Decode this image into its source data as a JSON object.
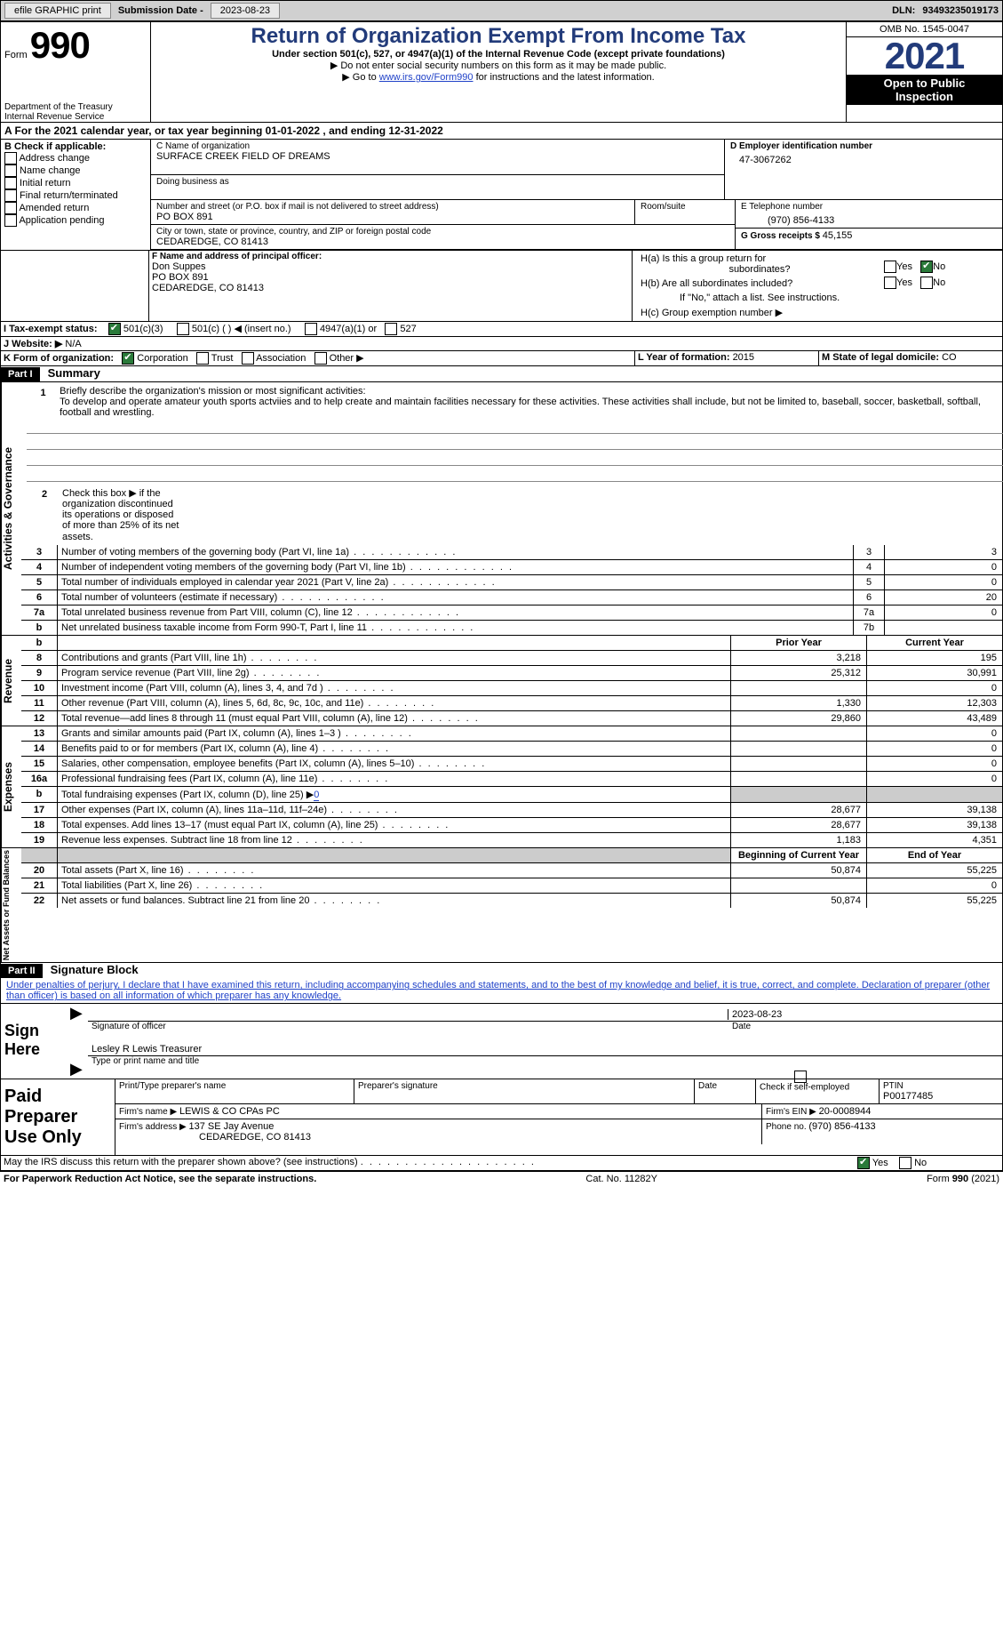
{
  "topbar": {
    "efile": "efile GRAPHIC print",
    "sub_label": "Submission Date - ",
    "sub_date": "2023-08-23",
    "dln_label": "DLN: ",
    "dln": "93493235019173"
  },
  "header": {
    "form_word": "Form",
    "form_num": "990",
    "title": "Return of Organization Exempt From Income Tax",
    "subtitle": "Under section 501(c), 527, or 4947(a)(1) of the Internal Revenue Code (except private foundations)",
    "hint1": "▶ Do not enter social security numbers on this form as it may be made public.",
    "hint2_pre": "▶ Go to ",
    "hint2_link": "www.irs.gov/Form990",
    "hint2_post": " for instructions and the latest information.",
    "dept": "Department of the Treasury",
    "irs": "Internal Revenue Service",
    "omb": "OMB No. 1545-0047",
    "year": "2021",
    "inspect1": "Open to Public",
    "inspect2": "Inspection"
  },
  "A": {
    "text_pre": "A   For the 2021 calendar year, or tax year beginning ",
    "begin": "01-01-2022",
    "mid": "   , and ending ",
    "end": "12-31-2022"
  },
  "B": {
    "label": "B Check if applicable:",
    "opts": [
      "Address change",
      "Name change",
      "Initial return",
      "Final return/terminated",
      "Amended return",
      "Application pending"
    ]
  },
  "C": {
    "name_label": "C Name of organization",
    "name": "SURFACE CREEK FIELD OF DREAMS",
    "dba_label": "Doing business as",
    "addr_label": "Number and street (or P.O. box if mail is not delivered to street address)",
    "room_label": "Room/suite",
    "addr": "PO BOX 891",
    "city_label": "City or town, state or province, country, and ZIP or foreign postal code",
    "city": "CEDAREDGE, CO  81413"
  },
  "D": {
    "label": "D Employer identification number",
    "val": "47-3067262"
  },
  "E": {
    "label": "E Telephone number",
    "val": "(970) 856-4133"
  },
  "G": {
    "label": "G Gross receipts $ ",
    "val": "45,155"
  },
  "F": {
    "label": "F  Name and address of principal officer:",
    "name": "Don Suppes",
    "addr1": "PO BOX 891",
    "addr2": "CEDAREDGE, CO  81413"
  },
  "H": {
    "a_label": "H(a)   Is this a group return for",
    "a_sub": "subordinates?",
    "b_label": "H(b)   Are all subordinates included?",
    "b_hint": "If \"No,\" attach a list. See instructions.",
    "c_label": "H(c)   Group exemption number ▶",
    "yes": "Yes",
    "no": "No"
  },
  "I": {
    "label": "I   Tax-exempt status:",
    "o1": "501(c)(3)",
    "o2": "501(c) ( )  ◀ (insert no.)",
    "o3": "4947(a)(1) or",
    "o4": "527"
  },
  "J": {
    "label": "J   Website: ▶",
    "val": "  N/A"
  },
  "K": {
    "label": "K Form of organization:",
    "o1": "Corporation",
    "o2": "Trust",
    "o3": "Association",
    "o4": "Other ▶"
  },
  "L": {
    "label": "L Year of formation: ",
    "val": "2015"
  },
  "M": {
    "label": "M State of legal domicile: ",
    "val": "CO"
  },
  "part1": {
    "head": "Part I",
    "title": "Summary",
    "l1_label": "Briefly describe the organization's mission or most significant activities:",
    "l1_text": "To develop and operate amateur youth sports actviies and to help create and maintain facilities necessary for these activities. These activities shall include, but not be limited to, baseball, soccer, basketball, softball, football and wrestling.",
    "l2": "Check this box ▶       if the organization discontinued its operations or disposed of more than 25% of its net assets.",
    "lines_gov": [
      {
        "n": "3",
        "d": "Number of voting members of the governing body (Part VI, line 1a)",
        "box": "3",
        "v": "3"
      },
      {
        "n": "4",
        "d": "Number of independent voting members of the governing body (Part VI, line 1b)",
        "box": "4",
        "v": "0"
      },
      {
        "n": "5",
        "d": "Total number of individuals employed in calendar year 2021 (Part V, line 2a)",
        "box": "5",
        "v": "0"
      },
      {
        "n": "6",
        "d": "Total number of volunteers (estimate if necessary)",
        "box": "6",
        "v": "20"
      },
      {
        "n": "7a",
        "d": "Total unrelated business revenue from Part VIII, column (C), line 12",
        "box": "7a",
        "v": "0"
      },
      {
        "n": "b",
        "d": "Net unrelated business taxable income from Form 990-T, Part I, line 11",
        "box": "7b",
        "v": ""
      }
    ],
    "col_prior": "Prior Year",
    "col_curr": "Current Year",
    "lines_rev": [
      {
        "n": "8",
        "d": "Contributions and grants (Part VIII, line 1h)",
        "p": "3,218",
        "c": "195"
      },
      {
        "n": "9",
        "d": "Program service revenue (Part VIII, line 2g)",
        "p": "25,312",
        "c": "30,991"
      },
      {
        "n": "10",
        "d": "Investment income (Part VIII, column (A), lines 3, 4, and 7d )",
        "p": "",
        "c": "0"
      },
      {
        "n": "11",
        "d": "Other revenue (Part VIII, column (A), lines 5, 6d, 8c, 9c, 10c, and 11e)",
        "p": "1,330",
        "c": "12,303"
      },
      {
        "n": "12",
        "d": "Total revenue—add lines 8 through 11 (must equal Part VIII, column (A), line 12)",
        "p": "29,860",
        "c": "43,489"
      }
    ],
    "lines_exp": [
      {
        "n": "13",
        "d": "Grants and similar amounts paid (Part IX, column (A), lines 1–3 )",
        "p": "",
        "c": "0"
      },
      {
        "n": "14",
        "d": "Benefits paid to or for members (Part IX, column (A), line 4)",
        "p": "",
        "c": "0"
      },
      {
        "n": "15",
        "d": "Salaries, other compensation, employee benefits (Part IX, column (A), lines 5–10)",
        "p": "",
        "c": "0"
      },
      {
        "n": "16a",
        "d": "Professional fundraising fees (Part IX, column (A), line 11e)",
        "p": "",
        "c": "0"
      },
      {
        "n": "b",
        "d": "Total fundraising expenses (Part IX, column (D), line 25) ▶0",
        "p": "grey",
        "c": "grey"
      },
      {
        "n": "17",
        "d": "Other expenses (Part IX, column (A), lines 11a–11d, 11f–24e)",
        "p": "28,677",
        "c": "39,138"
      },
      {
        "n": "18",
        "d": "Total expenses. Add lines 13–17 (must equal Part IX, column (A), line 25)",
        "p": "28,677",
        "c": "39,138"
      },
      {
        "n": "19",
        "d": "Revenue less expenses. Subtract line 18 from line 12",
        "p": "1,183",
        "c": "4,351"
      }
    ],
    "col_begin": "Beginning of Current Year",
    "col_end": "End of Year",
    "lines_net": [
      {
        "n": "20",
        "d": "Total assets (Part X, line 16)",
        "p": "50,874",
        "c": "55,225"
      },
      {
        "n": "21",
        "d": "Total liabilities (Part X, line 26)",
        "p": "",
        "c": "0"
      },
      {
        "n": "22",
        "d": "Net assets or fund balances. Subtract line 21 from line 20",
        "p": "50,874",
        "c": "55,225"
      }
    ],
    "vtab_gov": "Activities & Governance",
    "vtab_rev": "Revenue",
    "vtab_exp": "Expenses",
    "vtab_net": "Net Assets or Fund Balances"
  },
  "part2": {
    "head": "Part II",
    "title": "Signature Block",
    "penalty": "Under penalties of perjury, I declare that I have examined this return, including accompanying schedules and statements, and to the best of my knowledge and belief, it is true, correct, and complete. Declaration of preparer (other than officer) is based on all information of which preparer has any knowledge.",
    "sign_here": "Sign Here",
    "sig_officer": "Signature of officer",
    "sig_date_label": "Date",
    "sig_date": "2023-08-23",
    "name_title": "Lesley R Lewis  Treasurer",
    "name_title_label": "Type or print name and title",
    "paid": "Paid Preparer Use Only",
    "pp_name_label": "Print/Type preparer's name",
    "pp_sig_label": "Preparer's signature",
    "pp_date_label": "Date",
    "pp_check_label": "Check          if self-employed",
    "ptin_label": "PTIN",
    "ptin": "P00177485",
    "firm_name_label": "Firm's name   ▶ ",
    "firm_name": "LEWIS & CO CPAs PC",
    "firm_ein_label": "Firm's EIN ▶ ",
    "firm_ein": "20-0008944",
    "firm_addr_label": "Firm's address ▶ ",
    "firm_addr1": "137 SE Jay Avenue",
    "firm_addr2": "CEDAREDGE, CO  81413",
    "phone_label": "Phone no. ",
    "phone": "(970) 856-4133",
    "discuss": "May the IRS discuss this return with the preparer shown above? (see instructions)",
    "yes": "Yes",
    "no": "No"
  },
  "footer": {
    "left": "For Paperwork Reduction Act Notice, see the separate instructions.",
    "mid": "Cat. No. 11282Y",
    "right": "Form 990 (2021)"
  }
}
